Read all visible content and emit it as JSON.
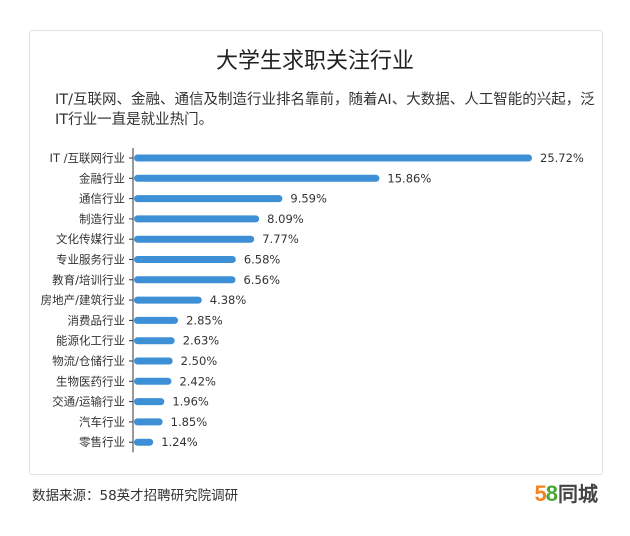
{
  "chart_data": {
    "type": "bar",
    "orientation": "horizontal",
    "title": "大学生求职关注行业",
    "subtitle": "IT/互联网、金融、通信及制造行业排名靠前，随着AI、大数据、人工智能的兴起，泛IT行业一直是就业热门。",
    "categories": [
      "IT /互联网行业",
      "金融行业",
      "通信行业",
      "制造行业",
      "文化传媒行业",
      "专业服务行业",
      "教育/培训行业",
      "房地产/建筑行业",
      "消费品行业",
      "能源化工行业",
      "物流/仓储行业",
      "生物医药行业",
      "交通/运输行业",
      "汽车行业",
      "零售行业"
    ],
    "values": [
      25.72,
      15.86,
      9.59,
      8.09,
      7.77,
      6.58,
      6.56,
      4.38,
      2.85,
      2.63,
      2.5,
      2.42,
      1.96,
      1.85,
      1.24
    ],
    "value_labels": [
      "25.72%",
      "15.86%",
      "9.59%",
      "8.09%",
      "7.77%",
      "6.58%",
      "6.56%",
      "4.38%",
      "2.85%",
      "2.63%",
      "2.50%",
      "2.42%",
      "1.96%",
      "1.85%",
      "1.24%"
    ],
    "unit": "%",
    "xlim": [
      0,
      25.72
    ],
    "grid": false,
    "legend": "none",
    "bar_color": "#3d8fd6"
  },
  "footer": {
    "source": "数据来源：58英才招聘研究院调研",
    "brand_digit_a": "5",
    "brand_digit_b": "8",
    "brand_name": "同城"
  },
  "colors": {
    "bar": "#3d8fd6",
    "axis": "#333333",
    "brand_orange": "#f58220",
    "brand_green": "#47a834"
  }
}
